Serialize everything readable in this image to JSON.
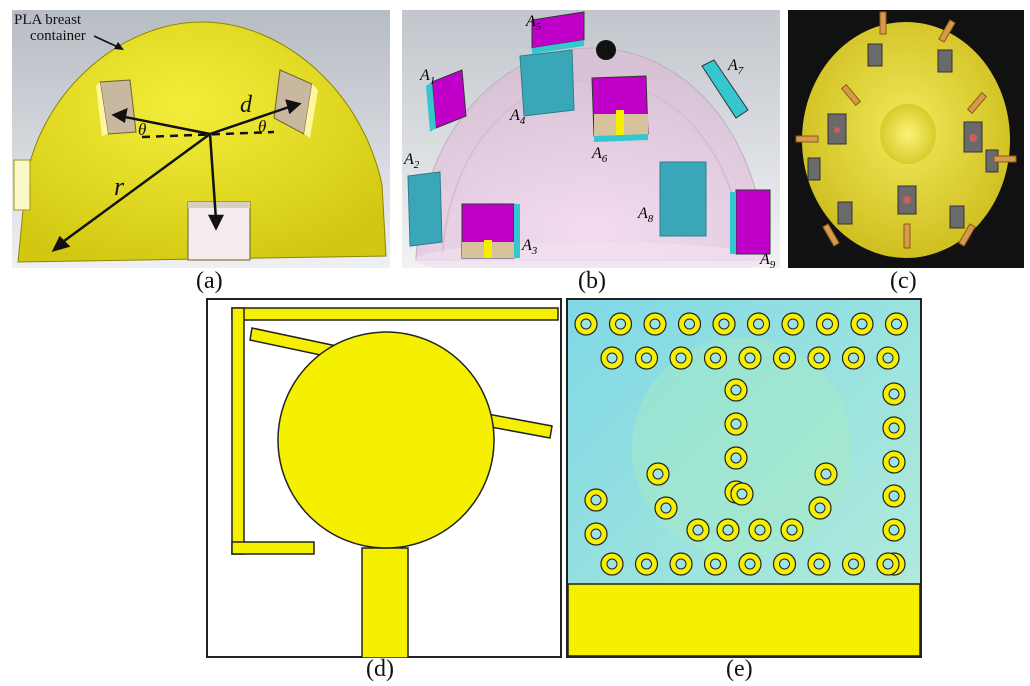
{
  "captions": {
    "a": "(a)",
    "b": "(b)",
    "c": "(c)",
    "d": "(d)",
    "e": "(e)"
  },
  "panel_a": {
    "container_label_line1": "PLA breast",
    "container_label_line2": "container",
    "dim_d": "d",
    "dim_r": "r",
    "angle_left": "θ",
    "angle_right": "θ"
  },
  "panel_b": {
    "antenna_symbol": "A",
    "antennas": [
      "1",
      "2",
      "3",
      "4",
      "5",
      "6",
      "7",
      "8",
      "9"
    ]
  },
  "colors": {
    "yellow": "#f5f000",
    "dome_yellow": "#e8e02a",
    "magenta": "#c000c8",
    "cyan": "#35c7d0",
    "teal_block": "#3aa7b8",
    "pink_glass": "#ecc8e2",
    "substrate_cyan": "#7fd8e6",
    "copper": "#d8c19d"
  }
}
